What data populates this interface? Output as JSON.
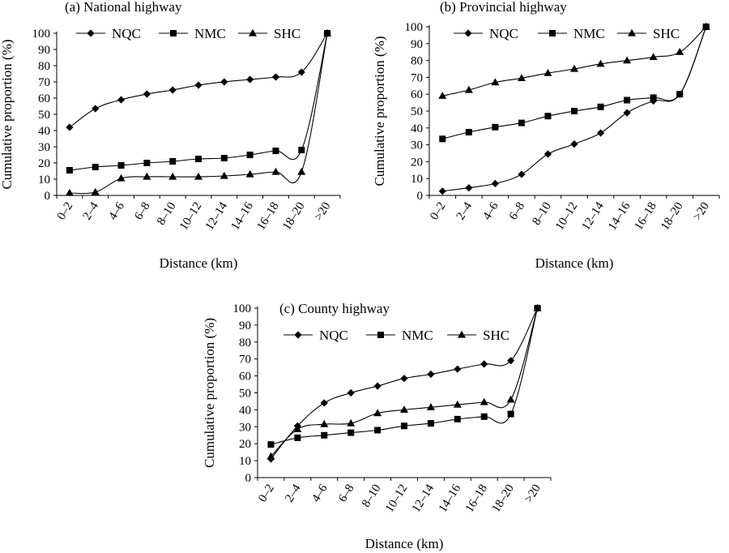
{
  "chart_data": [
    {
      "type": "line",
      "title": "(a) National highway",
      "xlabel": "Distance (km)",
      "ylabel": "Cumulative proportion (%)",
      "ylim": [
        0,
        100
      ],
      "yticks": [
        "0",
        "10",
        "20",
        "30",
        "40",
        "50",
        "60",
        "70",
        "80",
        "90",
        "100"
      ],
      "categories": [
        "0–2",
        "2–4",
        "4–6",
        "6–8",
        "8–10",
        "10–12",
        "12–14",
        "14–16",
        "16–18",
        "18–20",
        ">20"
      ],
      "legend": "top",
      "series": [
        {
          "name": "NQC",
          "marker": "diamond",
          "values": [
            42,
            53.5,
            59,
            62.5,
            65,
            68,
            70,
            71.5,
            73,
            76,
            100
          ]
        },
        {
          "name": "NMC",
          "marker": "square",
          "values": [
            15.5,
            17.5,
            18.5,
            20,
            21,
            22.5,
            23,
            25,
            27.5,
            28,
            100
          ]
        },
        {
          "name": "SHC",
          "marker": "triangle",
          "values": [
            1.5,
            2,
            10.5,
            11.5,
            11.5,
            11.5,
            12,
            13,
            14.5,
            14.5,
            100
          ]
        }
      ]
    },
    {
      "type": "line",
      "title": "(b) Provincial highway",
      "xlabel": "Distance (km)",
      "ylabel": "Cumulative proportion (%)",
      "ylim": [
        0,
        100
      ],
      "yticks": [
        "0",
        "10",
        "20",
        "30",
        "40",
        "50",
        "60",
        "70",
        "80",
        "90",
        "100"
      ],
      "categories": [
        "0–2",
        "2–4",
        "4–6",
        "6–8",
        "8–10",
        "10–12",
        "12–14",
        "14–16",
        "16–18",
        "18–20",
        ">20"
      ],
      "legend": "top",
      "series": [
        {
          "name": "NQC",
          "marker": "diamond",
          "values": [
            2.5,
            4.5,
            7,
            12.5,
            24.5,
            30.5,
            37,
            49,
            56,
            60,
            100
          ]
        },
        {
          "name": "NMC",
          "marker": "square",
          "values": [
            33.5,
            37.5,
            40.5,
            43,
            47,
            50,
            52.5,
            56.5,
            58,
            60,
            100
          ]
        },
        {
          "name": "SHC",
          "marker": "triangle",
          "values": [
            59,
            62.5,
            67,
            69.5,
            72.5,
            75,
            78,
            80,
            82,
            85,
            100
          ]
        }
      ]
    },
    {
      "type": "line",
      "title": "(c) County highway",
      "xlabel": "Distance (km)",
      "ylabel": "Cumulative proportion (%)",
      "ylim": [
        0,
        100
      ],
      "yticks": [
        "0",
        "10",
        "20",
        "30",
        "40",
        "50",
        "60",
        "70",
        "80",
        "90",
        "100"
      ],
      "categories": [
        "0–2",
        "2–4",
        "4–6",
        "6–8",
        "8–10",
        "10–12",
        "12–14",
        "14–16",
        "16–18",
        "18–20",
        ">20"
      ],
      "legend": "top",
      "series": [
        {
          "name": "NQC",
          "marker": "diamond",
          "values": [
            11,
            30.5,
            44,
            50,
            54,
            58.5,
            61,
            64,
            67,
            69,
            100
          ]
        },
        {
          "name": "NMC",
          "marker": "square",
          "values": [
            19.5,
            23.5,
            25,
            26.5,
            28,
            30.5,
            32,
            34.5,
            36,
            37.5,
            100
          ]
        },
        {
          "name": "SHC",
          "marker": "triangle",
          "values": [
            12.5,
            28.5,
            31.5,
            32,
            38,
            40,
            41.5,
            43,
            44.5,
            46,
            100
          ]
        }
      ]
    }
  ]
}
